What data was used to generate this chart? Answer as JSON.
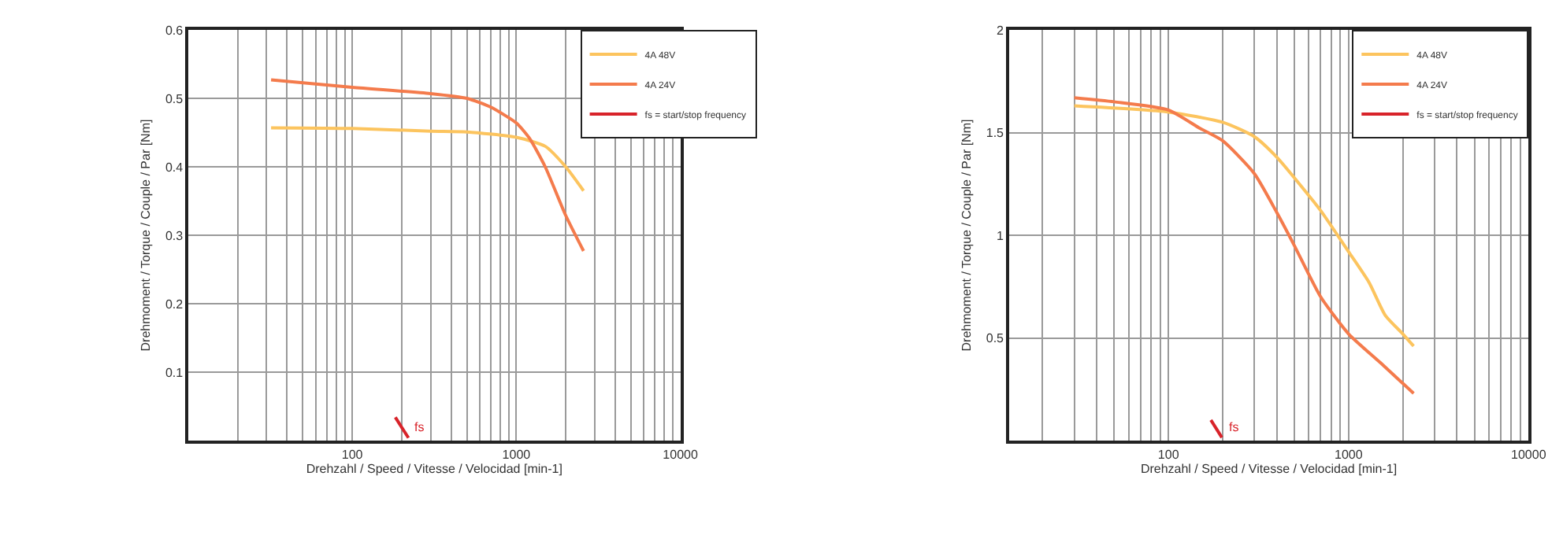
{
  "chart_data": [
    {
      "type": "line",
      "xlabel": "Drehzahl / Speed / Vitesse / Velocidad [min-1]",
      "ylabel": "Drehmoment / Torque / Couple / Par [Nm]",
      "log": "x",
      "grid": true,
      "legend": "top right",
      "xlim": [
        10,
        10000
      ],
      "ylim": [
        0,
        0.6
      ],
      "xticks": [
        {
          "value": 20,
          "label": null
        },
        {
          "value": 30,
          "label": null
        },
        {
          "value": 40,
          "label": null
        },
        {
          "value": 50,
          "label": null
        },
        {
          "value": 60,
          "label": null
        },
        {
          "value": 70,
          "label": null
        },
        {
          "value": 80,
          "label": null
        },
        {
          "value": 90,
          "label": null
        },
        100,
        {
          "value": 200,
          "label": null
        },
        {
          "value": 300,
          "label": null
        },
        {
          "value": 400,
          "label": null
        },
        {
          "value": 500,
          "label": null
        },
        {
          "value": 600,
          "label": null
        },
        {
          "value": 700,
          "label": null
        },
        {
          "value": 800,
          "label": null
        },
        {
          "value": 900,
          "label": null
        },
        1000,
        {
          "value": 2000,
          "label": null
        },
        {
          "value": 3000,
          "label": null
        },
        {
          "value": 4000,
          "label": null
        },
        {
          "value": 5000,
          "label": null
        },
        {
          "value": 6000,
          "label": null
        },
        {
          "value": 7000,
          "label": null
        },
        {
          "value": 8000,
          "label": null
        },
        {
          "value": 9000,
          "label": null
        },
        10000
      ],
      "yticks": [
        0.1,
        0.2,
        0.3,
        0.4,
        0.5,
        0.6
      ],
      "series": [
        {
          "name": "4A 48V",
          "color": "#fcc45e",
          "x": [
            32,
            100,
            300,
            500,
            1000,
            1500,
            2000,
            2570
          ],
          "values": [
            0.457,
            0.456,
            0.452,
            0.451,
            0.443,
            0.43,
            0.4,
            0.365
          ]
        },
        {
          "name": "4A 24V",
          "color": "#f47b4c",
          "x": [
            32,
            100,
            300,
            500,
            700,
            1000,
            1200,
            1500,
            2000,
            2570
          ],
          "values": [
            0.527,
            0.516,
            0.507,
            0.5,
            0.487,
            0.464,
            0.442,
            0.4,
            0.329,
            0.277
          ]
        },
        {
          "name": "fs = start/stop frequency",
          "color": "#d8232a",
          "x": [
            183,
            220
          ],
          "values": [
            0.034,
            0.004
          ]
        }
      ],
      "annotations": [
        {
          "text": "fs",
          "x": 220,
          "y": 0.004
        }
      ]
    },
    {
      "type": "line",
      "xlabel": "Drehzahl / Speed / Vitesse / Velocidad [min-1]",
      "ylabel": "Drehmoment / Torque / Couple / Par [Nm]",
      "log": "x",
      "grid": true,
      "legend": "top right",
      "xlim": [
        13,
        10000
      ],
      "ylim": [
        0,
        2
      ],
      "xticks": [
        {
          "value": 20,
          "label": null
        },
        {
          "value": 30,
          "label": null
        },
        {
          "value": 40,
          "label": null
        },
        {
          "value": 50,
          "label": null
        },
        {
          "value": 60,
          "label": null
        },
        {
          "value": 70,
          "label": null
        },
        {
          "value": 80,
          "label": null
        },
        {
          "value": 90,
          "label": null
        },
        100,
        {
          "value": 200,
          "label": null
        },
        {
          "value": 300,
          "label": null
        },
        {
          "value": 400,
          "label": null
        },
        {
          "value": 500,
          "label": null
        },
        {
          "value": 600,
          "label": null
        },
        {
          "value": 700,
          "label": null
        },
        {
          "value": 800,
          "label": null
        },
        {
          "value": 900,
          "label": null
        },
        1000,
        {
          "value": 2000,
          "label": null
        },
        {
          "value": 3000,
          "label": null
        },
        {
          "value": 4000,
          "label": null
        },
        {
          "value": 5000,
          "label": null
        },
        {
          "value": 6000,
          "label": null
        },
        {
          "value": 7000,
          "label": null
        },
        {
          "value": 8000,
          "label": null
        },
        {
          "value": 9000,
          "label": null
        },
        10000
      ],
      "yticks": [
        0.5,
        1,
        1.5,
        2
      ],
      "series": [
        {
          "name": "4A 48V",
          "color": "#fcc45e",
          "x": [
            30,
            100,
            200,
            300,
            400,
            500,
            700,
            1000,
            1300,
            1600,
            2000,
            2300
          ],
          "values": [
            1.63,
            1.6,
            1.55,
            1.48,
            1.38,
            1.28,
            1.12,
            0.92,
            0.77,
            0.61,
            0.52,
            0.46
          ]
        },
        {
          "name": "4A 24V",
          "color": "#f47b4c",
          "x": [
            30,
            50,
            100,
            150,
            200,
            300,
            400,
            500,
            700,
            1000,
            1500,
            2300
          ],
          "values": [
            1.67,
            1.65,
            1.61,
            1.52,
            1.46,
            1.3,
            1.11,
            0.95,
            0.7,
            0.52,
            0.38,
            0.23
          ]
        },
        {
          "name": "fs = start/stop frequency",
          "color": "#d8232a",
          "x": [
            172,
            198
          ],
          "values": [
            0.1,
            0.015
          ]
        }
      ],
      "annotations": [
        {
          "text": "fs",
          "x": 198,
          "y": 0.015
        }
      ]
    }
  ]
}
